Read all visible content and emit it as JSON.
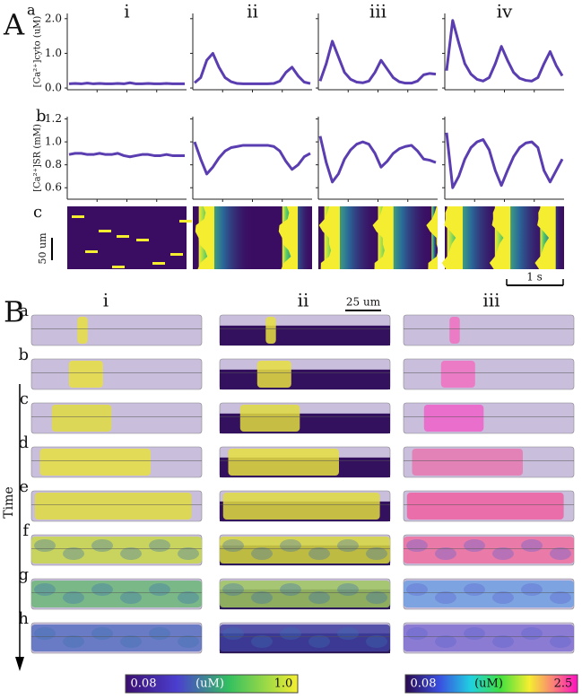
{
  "figure": {
    "panel_a": {
      "label": "A",
      "rows": [
        "a",
        "b",
        "c"
      ],
      "columns": [
        "i",
        "ii",
        "iii",
        "iv"
      ],
      "scale_y": "50 um",
      "scale_x": "1 s"
    },
    "panel_b": {
      "label": "B",
      "rows": [
        "a",
        "b",
        "c",
        "d",
        "e",
        "f",
        "g",
        "h"
      ],
      "columns": [
        "i",
        "ii",
        "iii"
      ],
      "scale": "25 um",
      "time_label": "Time",
      "colorbars": [
        {
          "min": "0.08",
          "unit": "(uM)",
          "max": "1.0"
        },
        {
          "min": "0.08",
          "unit": "(uM)",
          "max": "2.5"
        }
      ]
    }
  },
  "chart_data": [
    {
      "type": "line",
      "ylabel": "[Ca²⁺]cyto (uM)",
      "color": "#5a3db0",
      "ylim": [
        -0.05,
        2.15
      ],
      "yticks": [
        {
          "value": 0,
          "label": "0.0"
        },
        {
          "value": 1,
          "label": "1.0"
        },
        {
          "value": 2,
          "label": "2.0"
        }
      ],
      "series": [
        {
          "values": [
            0.12,
            0.13,
            0.12,
            0.14,
            0.12,
            0.13,
            0.12,
            0.12,
            0.13,
            0.12,
            0.15,
            0.12,
            0.12,
            0.13,
            0.12,
            0.12,
            0.13,
            0.12,
            0.12,
            0.12
          ]
        },
        {
          "values": [
            0.15,
            0.3,
            0.8,
            1.0,
            0.6,
            0.3,
            0.18,
            0.13,
            0.12,
            0.12,
            0.12,
            0.12,
            0.12,
            0.13,
            0.2,
            0.45,
            0.6,
            0.35,
            0.17,
            0.13
          ]
        },
        {
          "values": [
            0.2,
            0.7,
            1.35,
            0.9,
            0.45,
            0.25,
            0.17,
            0.15,
            0.2,
            0.45,
            0.8,
            0.55,
            0.3,
            0.18,
            0.14,
            0.14,
            0.2,
            0.38,
            0.42,
            0.4
          ]
        },
        {
          "values": [
            0.5,
            1.95,
            1.3,
            0.7,
            0.4,
            0.25,
            0.2,
            0.3,
            0.7,
            1.2,
            0.8,
            0.45,
            0.28,
            0.22,
            0.2,
            0.3,
            0.7,
            1.05,
            0.65,
            0.35
          ]
        }
      ]
    },
    {
      "type": "line",
      "ylabel": "[Ca²⁺]SR (mM)",
      "color": "#5a3db0",
      "ylim": [
        0.5,
        1.22
      ],
      "yticks": [
        0.6,
        0.8,
        {
          "value": 1,
          "label": "1.0"
        },
        1.2
      ],
      "series": [
        {
          "values": [
            0.89,
            0.9,
            0.9,
            0.89,
            0.89,
            0.9,
            0.89,
            0.89,
            0.9,
            0.88,
            0.87,
            0.88,
            0.89,
            0.89,
            0.88,
            0.88,
            0.89,
            0.88,
            0.88,
            0.88
          ]
        },
        {
          "values": [
            1.0,
            0.85,
            0.72,
            0.78,
            0.86,
            0.92,
            0.95,
            0.96,
            0.97,
            0.97,
            0.97,
            0.97,
            0.97,
            0.96,
            0.92,
            0.83,
            0.76,
            0.8,
            0.87,
            0.9
          ]
        },
        {
          "values": [
            1.05,
            0.82,
            0.65,
            0.72,
            0.85,
            0.93,
            0.98,
            1.0,
            0.98,
            0.9,
            0.78,
            0.83,
            0.9,
            0.94,
            0.96,
            0.97,
            0.92,
            0.85,
            0.84,
            0.82
          ]
        },
        {
          "values": [
            1.08,
            0.6,
            0.7,
            0.85,
            0.95,
            1.0,
            1.02,
            0.93,
            0.75,
            0.62,
            0.75,
            0.87,
            0.95,
            0.99,
            1.0,
            0.95,
            0.75,
            0.65,
            0.75,
            0.85
          ]
        }
      ]
    }
  ]
}
